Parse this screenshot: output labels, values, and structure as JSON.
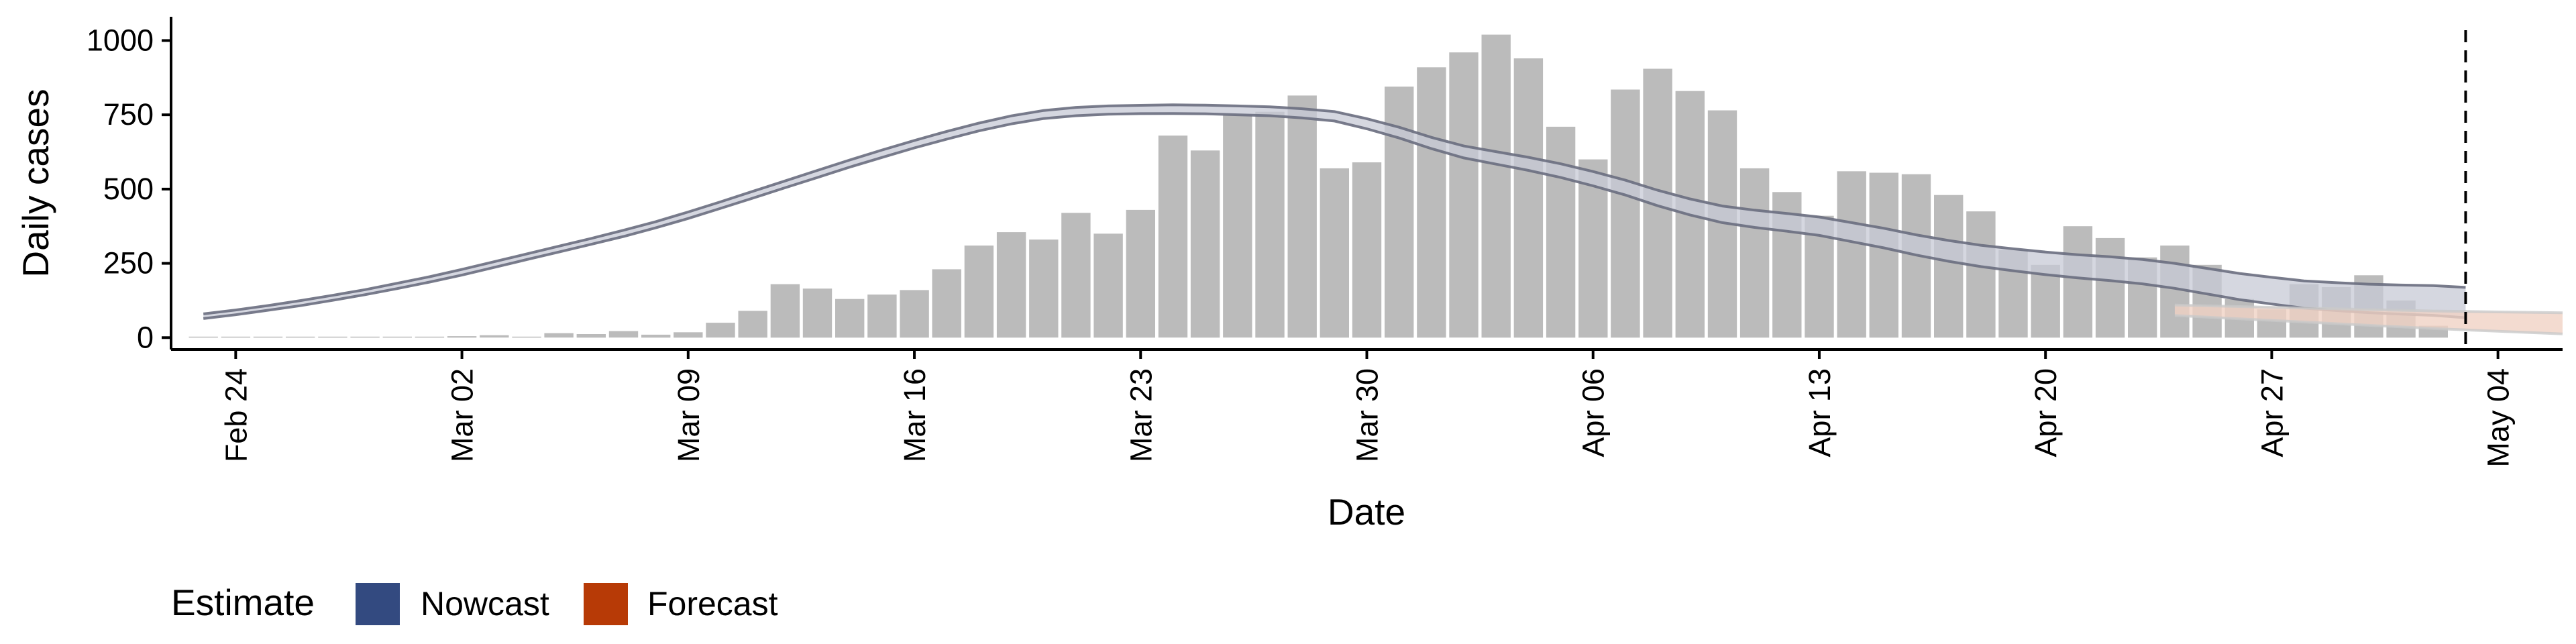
{
  "chart_data": {
    "type": "bar",
    "xlabel": "Date",
    "ylabel": "Daily cases",
    "x_start": "2020-02-22",
    "x_end": "2020-05-06",
    "ylim": [
      -40,
      1080
    ],
    "y_ticks": [
      0,
      250,
      500,
      750,
      1000
    ],
    "x_ticks": [
      {
        "date": "2020-02-24",
        "label": "Feb 24"
      },
      {
        "date": "2020-03-02",
        "label": "Mar 02"
      },
      {
        "date": "2020-03-09",
        "label": "Mar 09"
      },
      {
        "date": "2020-03-16",
        "label": "Mar 16"
      },
      {
        "date": "2020-03-23",
        "label": "Mar 23"
      },
      {
        "date": "2020-03-30",
        "label": "Mar 30"
      },
      {
        "date": "2020-04-06",
        "label": "Apr 06"
      },
      {
        "date": "2020-04-13",
        "label": "Apr 13"
      },
      {
        "date": "2020-04-20",
        "label": "Apr 20"
      },
      {
        "date": "2020-04-27",
        "label": "Apr 27"
      },
      {
        "date": "2020-05-04",
        "label": "May 04"
      }
    ],
    "bars": {
      "first_date": "2020-02-23",
      "values": [
        0,
        0,
        0,
        0,
        0,
        1,
        0,
        2,
        5,
        8,
        3,
        15,
        12,
        22,
        10,
        18,
        50,
        90,
        180,
        165,
        130,
        145,
        160,
        230,
        310,
        355,
        330,
        420,
        350,
        430,
        680,
        630,
        750,
        760,
        815,
        570,
        590,
        845,
        910,
        960,
        1020,
        940,
        710,
        600,
        835,
        905,
        830,
        765,
        570,
        490,
        410,
        560,
        555,
        550,
        480,
        425,
        295,
        245,
        375,
        335,
        270,
        310,
        245,
        130,
        95,
        180,
        170,
        210,
        125,
        40
      ]
    },
    "vline_date": "2020-05-03",
    "nowcast": {
      "first_date": "2020-02-23",
      "mid": [
        72,
        85,
        100,
        116,
        134,
        153,
        174,
        196,
        220,
        246,
        272,
        298,
        324,
        351,
        380,
        412,
        446,
        481,
        516,
        551,
        586,
        619,
        651,
        681,
        709,
        733,
        751,
        761,
        766,
        768,
        769,
        768,
        765,
        762,
        755,
        745,
        720,
        690,
        655,
        625,
        605,
        585,
        562,
        535,
        505,
        470,
        440,
        415,
        400,
        388,
        375,
        355,
        335,
        312,
        292,
        275,
        262,
        250,
        240,
        232,
        222,
        208,
        190,
        172,
        158,
        145,
        138,
        132,
        128,
        125,
        118
      ],
      "band": [
        16,
        16,
        16,
        17,
        17,
        17,
        18,
        18,
        19,
        19,
        19,
        20,
        20,
        21,
        21,
        22,
        22,
        23,
        23,
        24,
        24,
        25,
        25,
        26,
        26,
        27,
        27,
        28,
        28,
        28,
        29,
        29,
        30,
        30,
        31,
        32,
        34,
        36,
        38,
        40,
        42,
        44,
        46,
        48,
        50,
        52,
        54,
        56,
        58,
        60,
        62,
        64,
        66,
        68,
        70,
        72,
        74,
        76,
        78,
        80,
        82,
        84,
        86,
        88,
        90,
        92,
        94,
        96,
        98,
        100,
        102
      ]
    },
    "forecast": {
      "first_date": "2020-04-24",
      "mid": [
        92,
        88,
        84,
        80,
        76,
        72,
        68,
        64,
        60,
        57,
        54,
        51,
        48
      ],
      "band": [
        35,
        38,
        41,
        44,
        47,
        50,
        53,
        56,
        59,
        62,
        65,
        68,
        71
      ]
    },
    "legend": {
      "title": "Estimate",
      "items": [
        {
          "label": "Nowcast",
          "color": "#334a80"
        },
        {
          "label": "Forecast",
          "color": "#b73a06"
        }
      ]
    },
    "colors": {
      "bars": "#bbbbbb",
      "nowcast_band": "#c7cad6",
      "nowcast_line": "#6a6e80",
      "forecast_band": "#f0d2c4"
    }
  }
}
